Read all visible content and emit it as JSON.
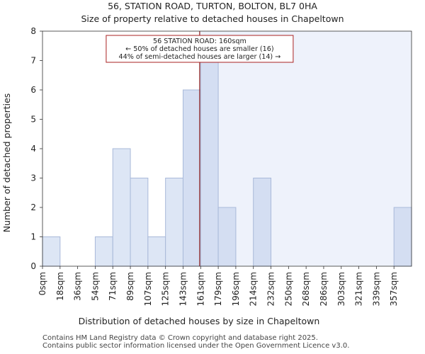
{
  "chart_data": {
    "type": "bar",
    "title_line1": "56, STATION ROAD, TURTON, BOLTON, BL7 0HA",
    "title_line2": "Size of property relative to detached houses in Chapeltown",
    "xlabel": "Distribution of detached houses by size in Chapeltown",
    "ylabel": "Number of detached properties",
    "categories": [
      "0sqm",
      "18sqm",
      "36sqm",
      "54sqm",
      "71sqm",
      "89sqm",
      "107sqm",
      "125sqm",
      "143sqm",
      "161sqm",
      "179sqm",
      "196sqm",
      "214sqm",
      "232sqm",
      "250sqm",
      "268sqm",
      "286sqm",
      "303sqm",
      "321sqm",
      "339sqm",
      "357sqm"
    ],
    "bin_edges": [
      0,
      18,
      36,
      54,
      71,
      89,
      107,
      125,
      143,
      161,
      179,
      196,
      214,
      232,
      250,
      268,
      286,
      303,
      321,
      339,
      357
    ],
    "values": [
      1,
      0,
      0,
      1,
      4,
      3,
      1,
      3,
      6,
      7,
      2,
      0,
      3,
      0,
      0,
      0,
      0,
      0,
      0,
      0,
      2
    ],
    "ylim": [
      0,
      8
    ],
    "yticks": [
      0,
      1,
      2,
      3,
      4,
      5,
      6,
      7,
      8
    ],
    "property_size_sqm": 160,
    "colors": {
      "bar_fill_below": "#dde6f5",
      "bar_fill_above": "#d4def2",
      "bar_stroke": "#a9b9d9",
      "shade_above": "#eef2fb",
      "marker_line": "#8b1a1a",
      "annotation_border": "#aa2222",
      "axis": "#333333"
    },
    "annotation": {
      "line1": "56 STATION ROAD: 160sqm",
      "line2": "← 50% of detached houses are smaller (16)",
      "line3": "44% of semi-detached houses are larger (14) →"
    }
  },
  "footer": {
    "line1": "Contains HM Land Registry data © Crown copyright and database right 2025.",
    "line2": "Contains public sector information licensed under the Open Government Licence v3.0."
  }
}
